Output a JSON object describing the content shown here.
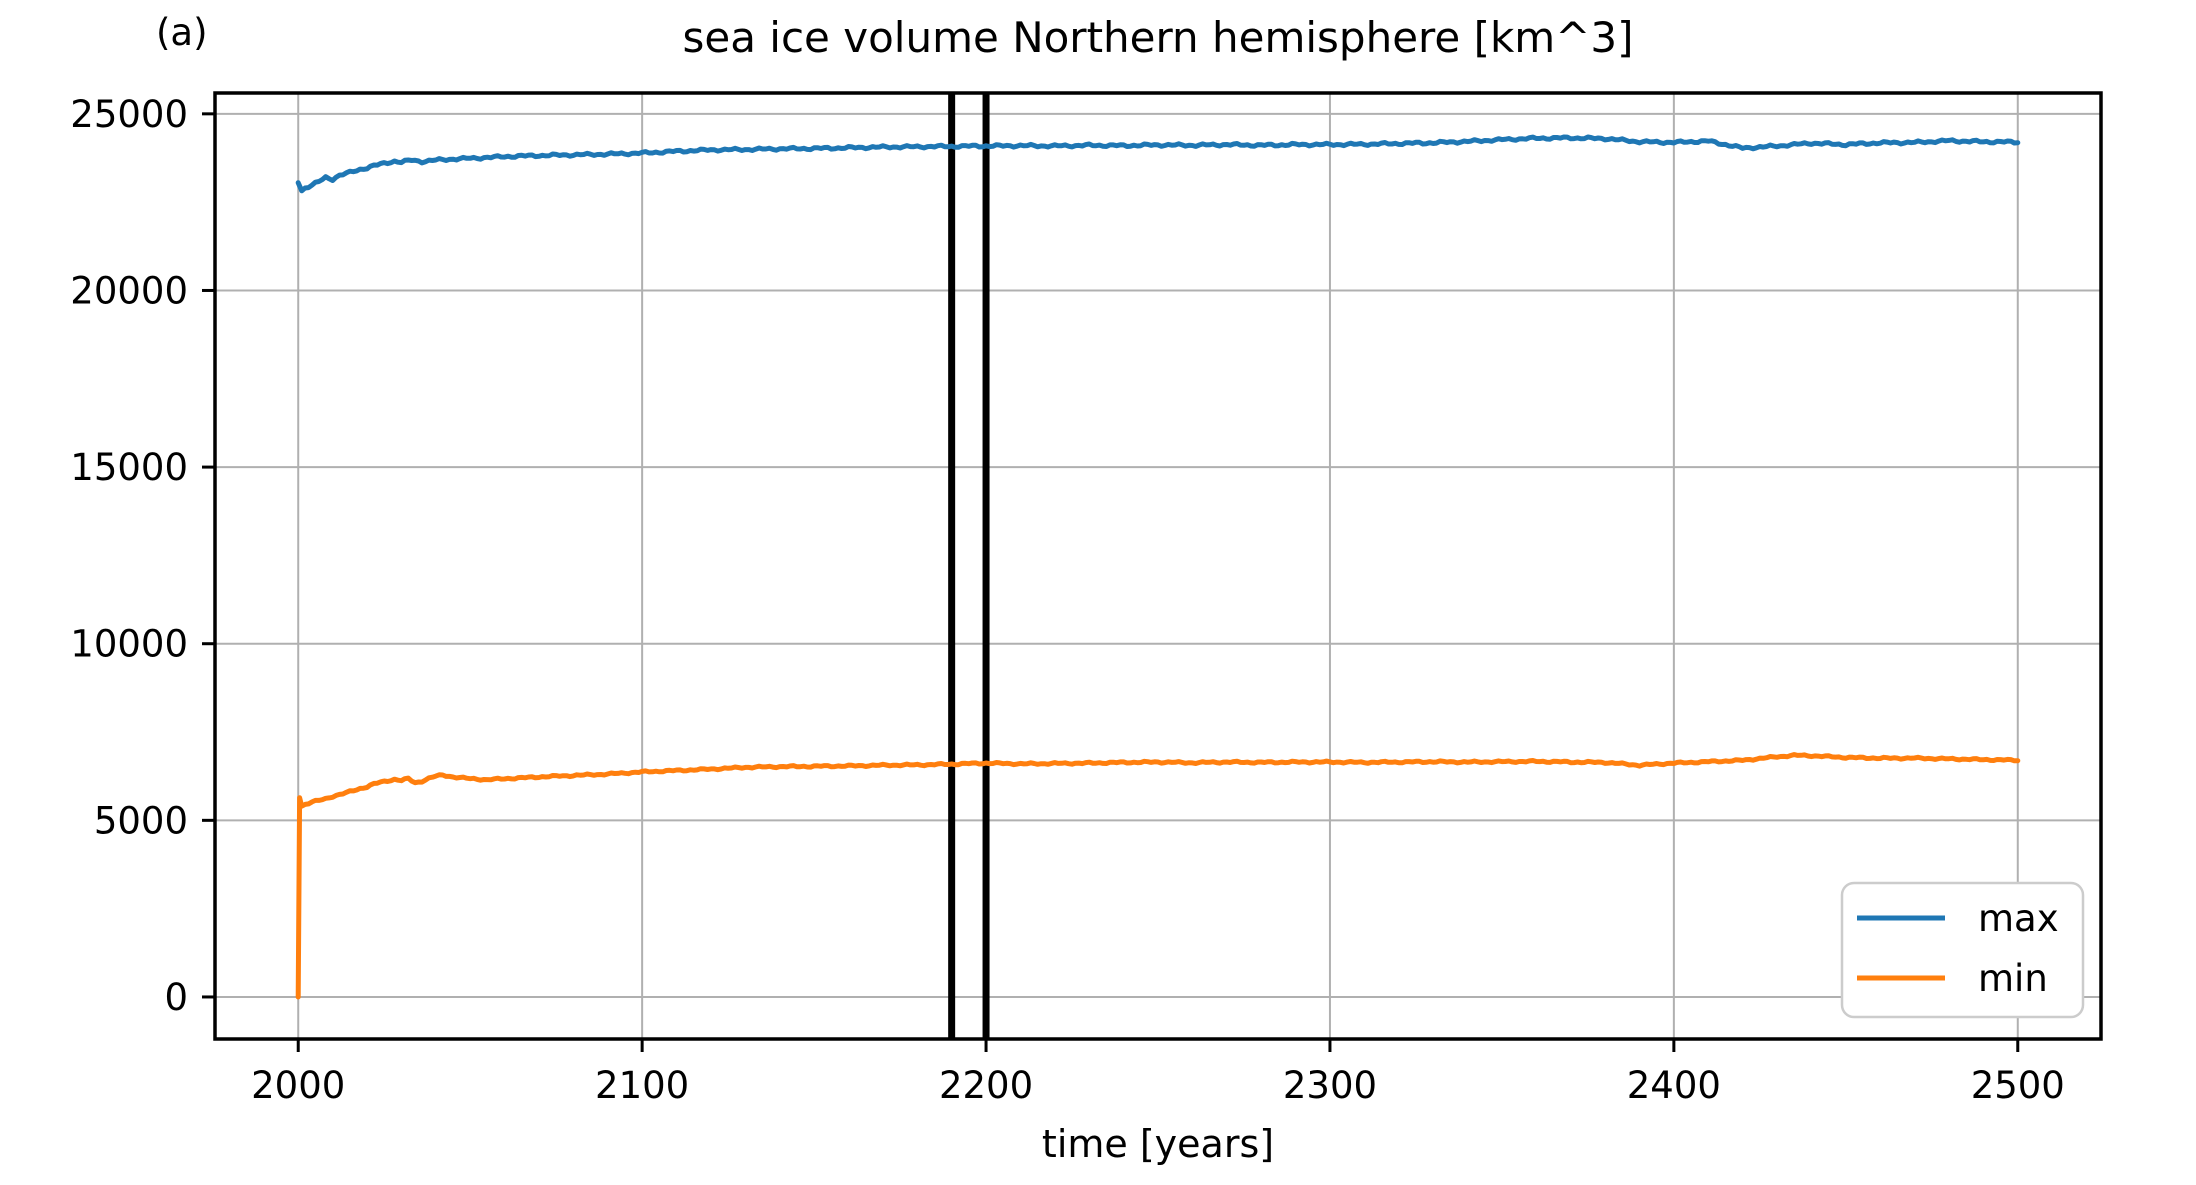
{
  "figure": {
    "corner_label": "(a)",
    "title": "sea ice volume Northern hemisphere [km^3]",
    "xlabel": "time [years]"
  },
  "chart_data": {
    "type": "line",
    "title": "sea ice volume Northern hemisphere [km^3]",
    "xlabel": "time [years]",
    "ylabel": "",
    "xlim": [
      1975.8,
      2524.2
    ],
    "ylim": [
      -1190,
      25590
    ],
    "xticks": [
      2000,
      2100,
      2200,
      2300,
      2400,
      2500
    ],
    "yticks": [
      0,
      5000,
      10000,
      15000,
      20000,
      25000
    ],
    "grid": true,
    "grid_color": "#b0b0b0",
    "axis_color": "#000000",
    "legend": {
      "position": "lower right",
      "entries": [
        "max",
        "min"
      ]
    },
    "vlines": {
      "x": [
        2190,
        2200
      ],
      "color": "#000000"
    },
    "noise_amplitude": {
      "max": 40,
      "min": 28
    },
    "series": [
      {
        "name": "max",
        "color": "#1f77b4",
        "points": [
          [
            2000,
            23050
          ],
          [
            2001,
            22820
          ],
          [
            2002,
            22900
          ],
          [
            2004,
            22980
          ],
          [
            2006,
            23080
          ],
          [
            2008,
            23200
          ],
          [
            2010,
            23150
          ],
          [
            2012,
            23260
          ],
          [
            2014,
            23310
          ],
          [
            2016,
            23370
          ],
          [
            2018,
            23430
          ],
          [
            2020,
            23470
          ],
          [
            2022,
            23530
          ],
          [
            2025,
            23600
          ],
          [
            2028,
            23660
          ],
          [
            2030,
            23630
          ],
          [
            2033,
            23690
          ],
          [
            2036,
            23650
          ],
          [
            2040,
            23690
          ],
          [
            2045,
            23720
          ],
          [
            2050,
            23740
          ],
          [
            2060,
            23790
          ],
          [
            2070,
            23820
          ],
          [
            2080,
            23840
          ],
          [
            2090,
            23860
          ],
          [
            2100,
            23890
          ],
          [
            2110,
            23940
          ],
          [
            2120,
            23980
          ],
          [
            2130,
            23990
          ],
          [
            2140,
            24010
          ],
          [
            2150,
            24020
          ],
          [
            2160,
            24040
          ],
          [
            2170,
            24060
          ],
          [
            2180,
            24070
          ],
          [
            2190,
            24080
          ],
          [
            2200,
            24090
          ],
          [
            2210,
            24100
          ],
          [
            2220,
            24090
          ],
          [
            2230,
            24110
          ],
          [
            2240,
            24100
          ],
          [
            2250,
            24120
          ],
          [
            2260,
            24110
          ],
          [
            2270,
            24130
          ],
          [
            2280,
            24110
          ],
          [
            2290,
            24130
          ],
          [
            2300,
            24130
          ],
          [
            2310,
            24140
          ],
          [
            2320,
            24160
          ],
          [
            2330,
            24180
          ],
          [
            2340,
            24220
          ],
          [
            2350,
            24270
          ],
          [
            2360,
            24310
          ],
          [
            2370,
            24320
          ],
          [
            2380,
            24300
          ],
          [
            2390,
            24210
          ],
          [
            2400,
            24190
          ],
          [
            2410,
            24230
          ],
          [
            2420,
            24030
          ],
          [
            2430,
            24090
          ],
          [
            2440,
            24170
          ],
          [
            2450,
            24130
          ],
          [
            2460,
            24180
          ],
          [
            2470,
            24190
          ],
          [
            2480,
            24240
          ],
          [
            2490,
            24210
          ],
          [
            2500,
            24200
          ]
        ]
      },
      {
        "name": "min",
        "color": "#ff7f0e",
        "points": [
          [
            2000,
            0
          ],
          [
            2000.4,
            5640
          ],
          [
            2001,
            5400
          ],
          [
            2002,
            5450
          ],
          [
            2004,
            5520
          ],
          [
            2006,
            5560
          ],
          [
            2008,
            5610
          ],
          [
            2010,
            5680
          ],
          [
            2012,
            5730
          ],
          [
            2014,
            5780
          ],
          [
            2016,
            5840
          ],
          [
            2018,
            5900
          ],
          [
            2020,
            5950
          ],
          [
            2022,
            6030
          ],
          [
            2025,
            6100
          ],
          [
            2028,
            6160
          ],
          [
            2030,
            6130
          ],
          [
            2032,
            6180
          ],
          [
            2034,
            6060
          ],
          [
            2036,
            6110
          ],
          [
            2038,
            6190
          ],
          [
            2040,
            6250
          ],
          [
            2042,
            6280
          ],
          [
            2045,
            6230
          ],
          [
            2050,
            6180
          ],
          [
            2055,
            6150
          ],
          [
            2060,
            6180
          ],
          [
            2065,
            6200
          ],
          [
            2070,
            6230
          ],
          [
            2075,
            6250
          ],
          [
            2080,
            6270
          ],
          [
            2085,
            6290
          ],
          [
            2090,
            6310
          ],
          [
            2095,
            6340
          ],
          [
            2100,
            6370
          ],
          [
            2110,
            6410
          ],
          [
            2120,
            6450
          ],
          [
            2130,
            6500
          ],
          [
            2140,
            6520
          ],
          [
            2150,
            6530
          ],
          [
            2160,
            6540
          ],
          [
            2170,
            6560
          ],
          [
            2180,
            6570
          ],
          [
            2190,
            6590
          ],
          [
            2200,
            6620
          ],
          [
            2210,
            6600
          ],
          [
            2220,
            6610
          ],
          [
            2230,
            6620
          ],
          [
            2240,
            6640
          ],
          [
            2250,
            6650
          ],
          [
            2260,
            6630
          ],
          [
            2270,
            6650
          ],
          [
            2280,
            6640
          ],
          [
            2290,
            6650
          ],
          [
            2300,
            6650
          ],
          [
            2310,
            6640
          ],
          [
            2320,
            6650
          ],
          [
            2330,
            6660
          ],
          [
            2340,
            6650
          ],
          [
            2350,
            6660
          ],
          [
            2360,
            6670
          ],
          [
            2370,
            6650
          ],
          [
            2380,
            6640
          ],
          [
            2390,
            6560
          ],
          [
            2400,
            6620
          ],
          [
            2410,
            6660
          ],
          [
            2420,
            6700
          ],
          [
            2430,
            6800
          ],
          [
            2435,
            6840
          ],
          [
            2440,
            6830
          ],
          [
            2450,
            6780
          ],
          [
            2460,
            6760
          ],
          [
            2470,
            6760
          ],
          [
            2480,
            6740
          ],
          [
            2490,
            6720
          ],
          [
            2500,
            6700
          ]
        ]
      }
    ]
  }
}
